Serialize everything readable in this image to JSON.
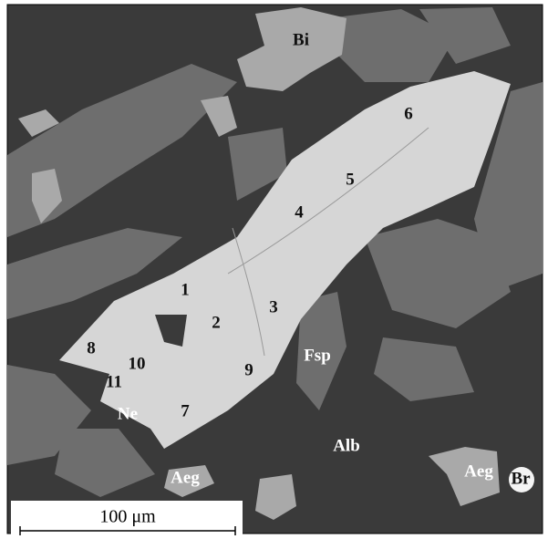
{
  "labels": [
    {
      "text": "Bi"
    },
    {
      "text": "6"
    },
    {
      "text": "5"
    },
    {
      "text": "4"
    },
    {
      "text": "1"
    },
    {
      "text": "3"
    },
    {
      "text": "2"
    },
    {
      "text": "8"
    },
    {
      "text": "10"
    },
    {
      "text": "9"
    },
    {
      "text": "Fsp"
    },
    {
      "text": "11"
    },
    {
      "text": "7"
    },
    {
      "text": "Ne"
    },
    {
      "text": "Alb"
    },
    {
      "text": "Aeg"
    },
    {
      "text": "Aeg"
    },
    {
      "text": "Br"
    }
  ],
  "scale_bar": {
    "label": "100 μm"
  }
}
